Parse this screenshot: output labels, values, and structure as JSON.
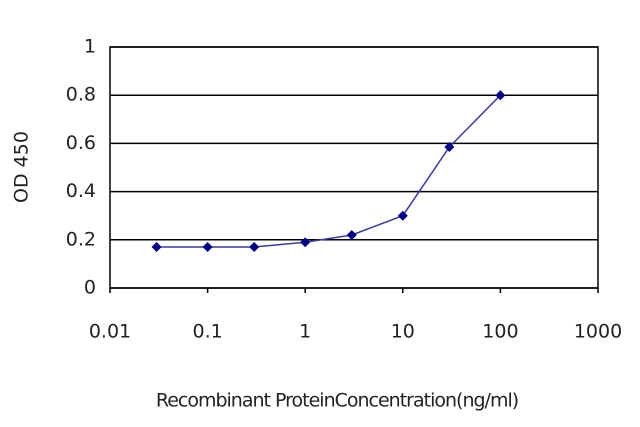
{
  "chart_data": {
    "type": "line",
    "xlabel": "Recombinant ProteinConcentration(ng/ml)",
    "ylabel": "OD 450",
    "x": [
      0.03,
      0.1,
      0.3,
      1,
      3,
      10,
      30,
      100
    ],
    "series": [
      {
        "color": "#00008b",
        "values": [
          0.17,
          0.17,
          0.17,
          0.19,
          0.22,
          0.3,
          0.585,
          0.8
        ]
      }
    ],
    "xscale": "log",
    "xlim": [
      0.01,
      1000
    ],
    "xticks": [
      0.01,
      0.1,
      1,
      10,
      100,
      1000
    ],
    "ylim": [
      0,
      1
    ],
    "yticks": [
      0,
      0.2,
      0.4,
      0.6,
      0.8,
      1
    ],
    "grid": true
  }
}
